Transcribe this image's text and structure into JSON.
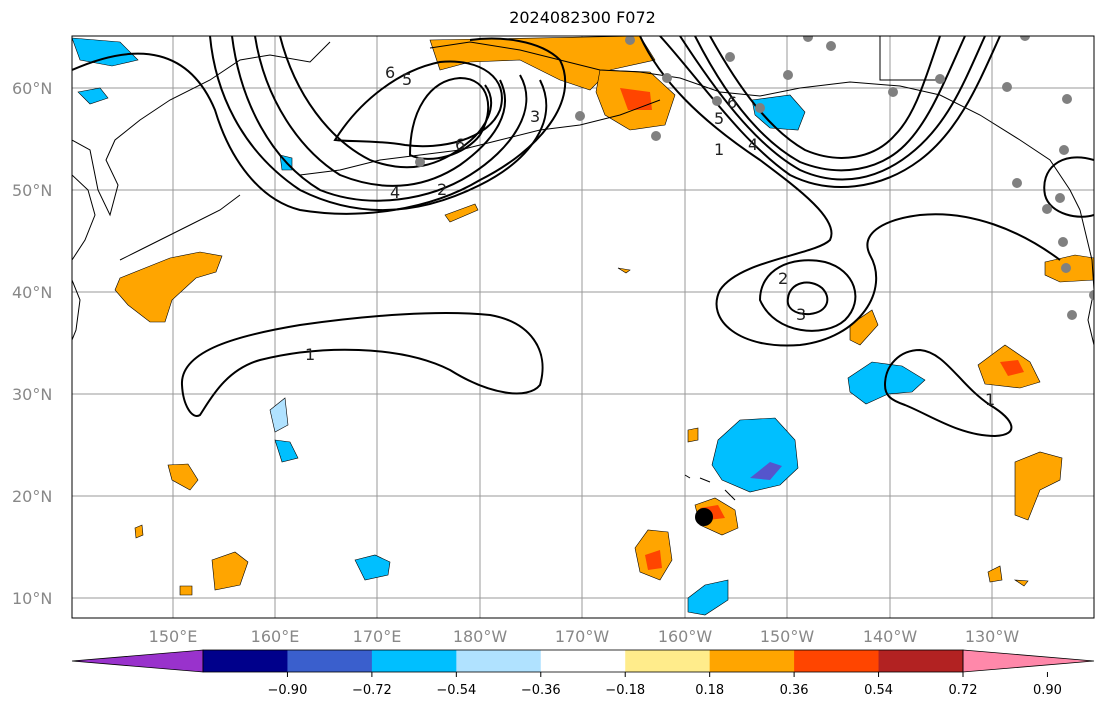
{
  "title": "2024082300 F072",
  "lat_labels": [
    "60°N",
    "50°N",
    "40°N",
    "30°N",
    "20°N",
    "10°N"
  ],
  "lon_labels": [
    "150°E",
    "160°E",
    "170°E",
    "180°W",
    "170°W",
    "160°W",
    "150°W",
    "140°W",
    "130°W"
  ],
  "colorbar": {
    "ticks": [
      "−0.90",
      "−0.72",
      "−0.54",
      "−0.36",
      "−0.18",
      "0.18",
      "0.36",
      "0.54",
      "0.72",
      "0.90"
    ],
    "colors": [
      "#9932CC",
      "#00008B",
      "#3A5FCD",
      "#00BFFF",
      "#B0E2FF",
      "#FFFFFF",
      "#FFEC8B",
      "#FFA500",
      "#FF4500",
      "#B22222",
      "#FF88AA"
    ]
  },
  "contour_labels": [
    "6",
    "5",
    "6",
    "3",
    "4",
    "2",
    "6",
    "5",
    "1",
    "4",
    "2",
    "3",
    "1",
    "1"
  ],
  "colors": {
    "orange": "#FFA500",
    "red_orange": "#FF4500",
    "sky_blue": "#00BFFF",
    "indigo": "#5555CC",
    "grey_dot": "#808080"
  }
}
